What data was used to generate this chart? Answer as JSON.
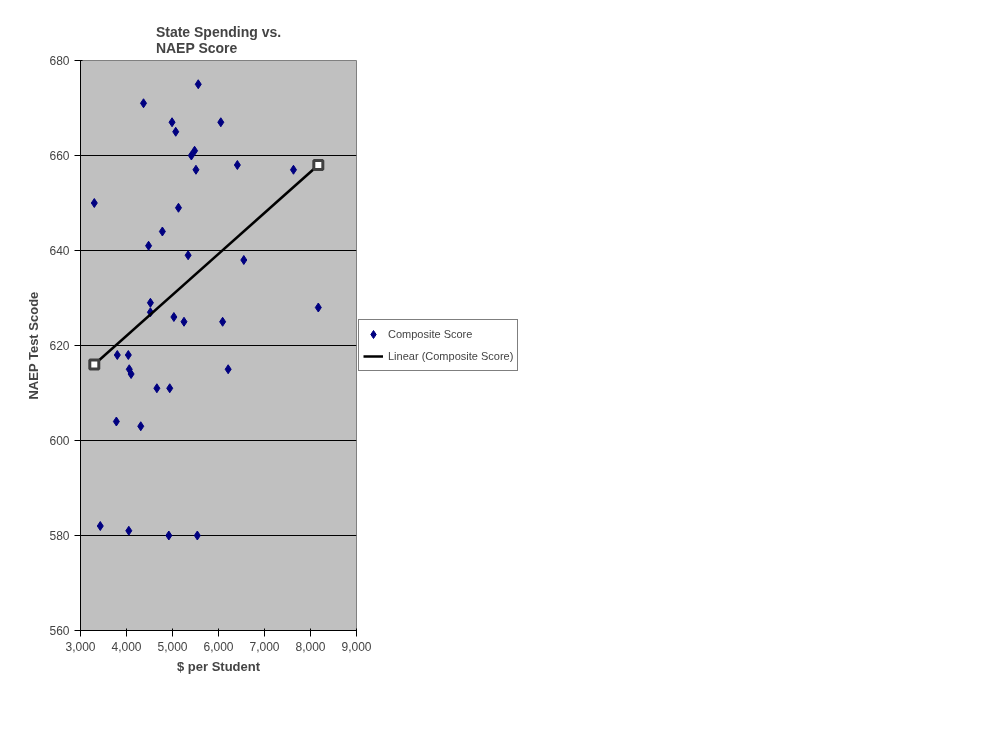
{
  "chart_data": {
    "type": "scatter",
    "title": "State Spending vs.\nNAEP Score",
    "xlabel": "$ per Student",
    "ylabel": "NAEP Test Scode",
    "xlim": [
      3000,
      9000
    ],
    "xticks": [
      {
        "value": 3000,
        "label": "3,000"
      },
      {
        "value": 4000,
        "label": "4,000"
      },
      {
        "value": 5000,
        "label": "5,000"
      },
      {
        "value": 6000,
        "label": "6,000"
      },
      {
        "value": 7000,
        "label": "7,000"
      },
      {
        "value": 8000,
        "label": "8,000"
      },
      {
        "value": 9000,
        "label": "9,000"
      }
    ],
    "ylim": [
      560,
      680
    ],
    "yticks": [
      560,
      580,
      600,
      620,
      640,
      660,
      680
    ],
    "grid": "y",
    "legend": "right",
    "marker": "diamond",
    "series": [
      {
        "name": "Composite Score",
        "color": "#000080",
        "x": [
          3300,
          3430,
          3800,
          3780,
          4040,
          4060,
          4100,
          4050,
          4310,
          4370,
          4480,
          4520,
          4520,
          4660,
          4780,
          4920,
          4940,
          4990,
          5030,
          5070,
          5130,
          5250,
          5340,
          5410,
          5480,
          5510,
          5540,
          5560,
          6050,
          6090,
          6210,
          6410,
          6550,
          7630,
          8170
        ],
        "values": [
          650,
          582,
          618,
          604,
          618,
          615,
          614,
          581,
          603,
          671,
          641,
          629,
          627,
          611,
          644,
          580,
          611,
          667,
          626,
          665,
          649,
          625,
          639,
          660,
          661,
          657,
          580,
          675,
          667,
          625,
          615,
          658,
          638,
          657,
          628
        ]
      },
      {
        "name": "Linear (Composite Score)",
        "type": "line",
        "marker": "square",
        "color": "#000000",
        "x": [
          3300,
          8170
        ],
        "values": [
          616,
          658
        ]
      }
    ]
  }
}
